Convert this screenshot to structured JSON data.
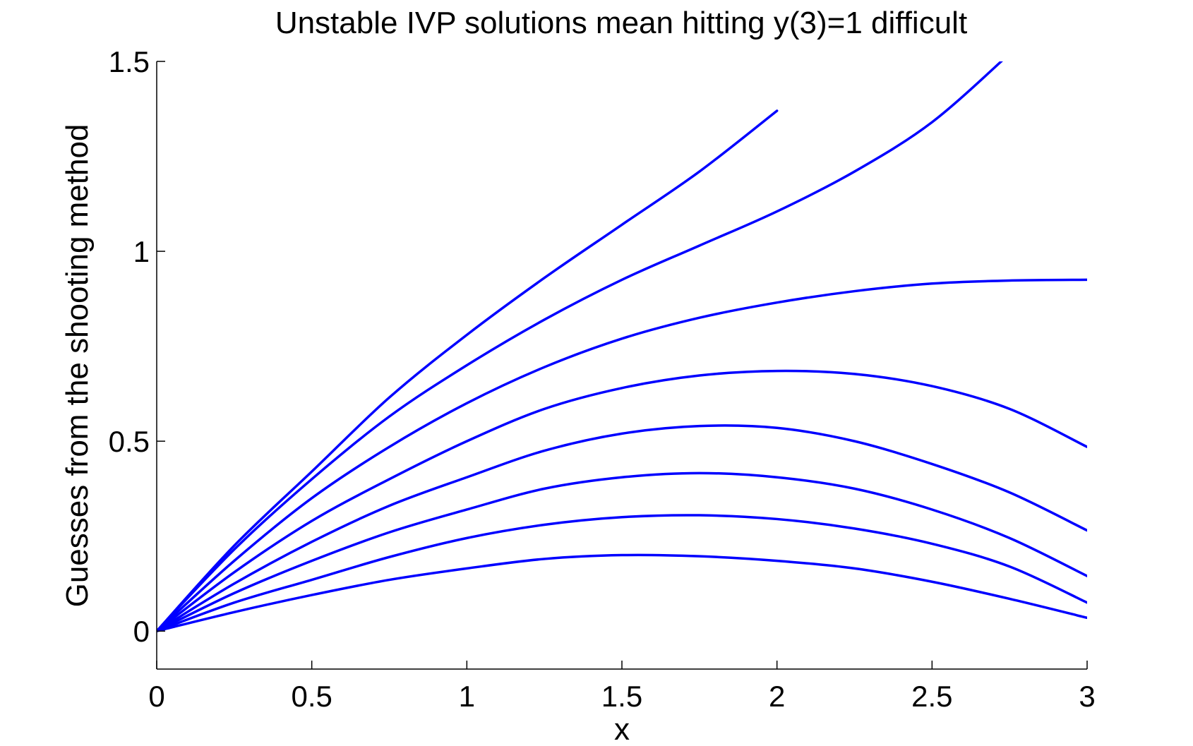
{
  "chart_data": {
    "type": "line",
    "title": "Unstable IVP solutions mean hitting y(3)=1 difficult",
    "xlabel": "x",
    "ylabel": "Guesses from the shooting method",
    "xlim": [
      0,
      3
    ],
    "ylim": [
      -0.1,
      1.5
    ],
    "xticks": [
      0,
      0.5,
      1,
      1.5,
      2,
      2.5,
      3
    ],
    "yticks": [
      0,
      0.5,
      1,
      1.5
    ],
    "xtick_labels": [
      "0",
      "0.5",
      "1",
      "1.5",
      "2",
      "2.5",
      "3"
    ],
    "ytick_labels": [
      "0",
      "0.5",
      "1",
      "1.5"
    ],
    "grid": false,
    "line_color": "#0000ff",
    "x": [
      0,
      0.25,
      0.5,
      0.75,
      1.0,
      1.25,
      1.5,
      1.75,
      2.0,
      2.25,
      2.5,
      2.75,
      3.0
    ],
    "series": [
      {
        "values": [
          0,
          0.225,
          0.42,
          0.615,
          0.78,
          0.93,
          1.07,
          1.21,
          1.37,
          null,
          null,
          null,
          null
        ]
      },
      {
        "values": [
          0,
          0.215,
          0.4,
          0.565,
          0.7,
          0.82,
          0.925,
          1.015,
          1.105,
          1.21,
          1.34,
          1.52,
          null
        ]
      },
      {
        "values": [
          0,
          0.185,
          0.35,
          0.485,
          0.6,
          0.695,
          0.77,
          0.825,
          0.865,
          0.895,
          0.915,
          0.923,
          0.925
        ]
      },
      {
        "values": [
          0,
          0.155,
          0.29,
          0.4,
          0.5,
          0.585,
          0.64,
          0.673,
          0.685,
          0.677,
          0.645,
          0.585,
          0.485
        ]
      },
      {
        "values": [
          0,
          0.125,
          0.235,
          0.33,
          0.405,
          0.475,
          0.52,
          0.54,
          0.535,
          0.5,
          0.44,
          0.365,
          0.265
        ]
      },
      {
        "values": [
          0,
          0.1,
          0.185,
          0.26,
          0.32,
          0.375,
          0.405,
          0.416,
          0.405,
          0.375,
          0.32,
          0.245,
          0.145
        ]
      },
      {
        "values": [
          0,
          0.075,
          0.135,
          0.195,
          0.245,
          0.28,
          0.3,
          0.305,
          0.295,
          0.27,
          0.23,
          0.17,
          0.075
        ]
      },
      {
        "values": [
          0,
          0.05,
          0.095,
          0.135,
          0.165,
          0.19,
          0.2,
          0.197,
          0.185,
          0.165,
          0.13,
          0.085,
          0.035
        ]
      }
    ]
  }
}
